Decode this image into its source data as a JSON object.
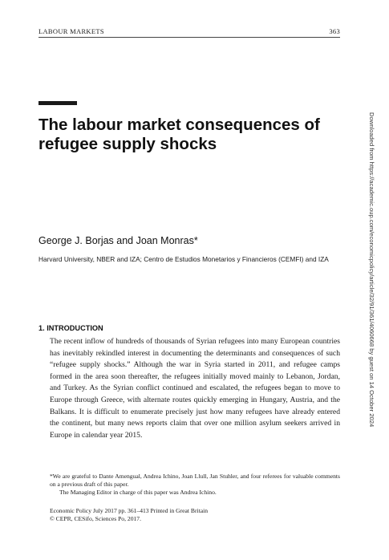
{
  "running_head": {
    "section": "LABOUR MARKETS",
    "page_number": "363"
  },
  "article": {
    "title": "The labour market consequences of refugee supply shocks",
    "authors": "George J. Borjas and Joan Monras*",
    "affiliation": "Harvard University, NBER and IZA; Centro de Estudios Monetarios y Financieros (CEMFI) and IZA"
  },
  "section": {
    "heading": "1. INTRODUCTION",
    "paragraph": "The recent inflow of hundreds of thousands of Syrian refugees into many European countries has inevitably rekindled interest in documenting the determinants and consequences of such “refugee supply shocks.” Although the war in Syria started in 2011, and refugee camps formed in the area soon thereafter, the refugees initially moved mainly to Lebanon, Jordan, and Turkey. As the Syrian conflict continued and escalated, the refugees began to move to Europe through Greece, with alternate routes quickly emerging in Hungary, Austria, and the Balkans. It is difficult to enumerate precisely just how many refugees have already entered the continent, but many news reports claim that over one million asylum seekers arrived in Europe in calendar year 2015."
  },
  "footnotes": {
    "acknowledgement": "*We are grateful to Dante Amengual, Andrea Ichino, Joan Llull, Jan Stuhler, and four referees for valuable comments on a previous draft of this paper.",
    "managing_editor": "The Managing Editor in charge of this paper was Andrea Ichino."
  },
  "journal": {
    "citation": "Economic Policy July 2017 pp. 361–413 Printed in Great Britain",
    "copyright": "© CEPR, CESifo, Sciences Po, 2017."
  },
  "side_note": "Downloaded from https://academic.oup.com/economicpolicy/article/32/91/361/4060668 by guest on 14 October 2024"
}
